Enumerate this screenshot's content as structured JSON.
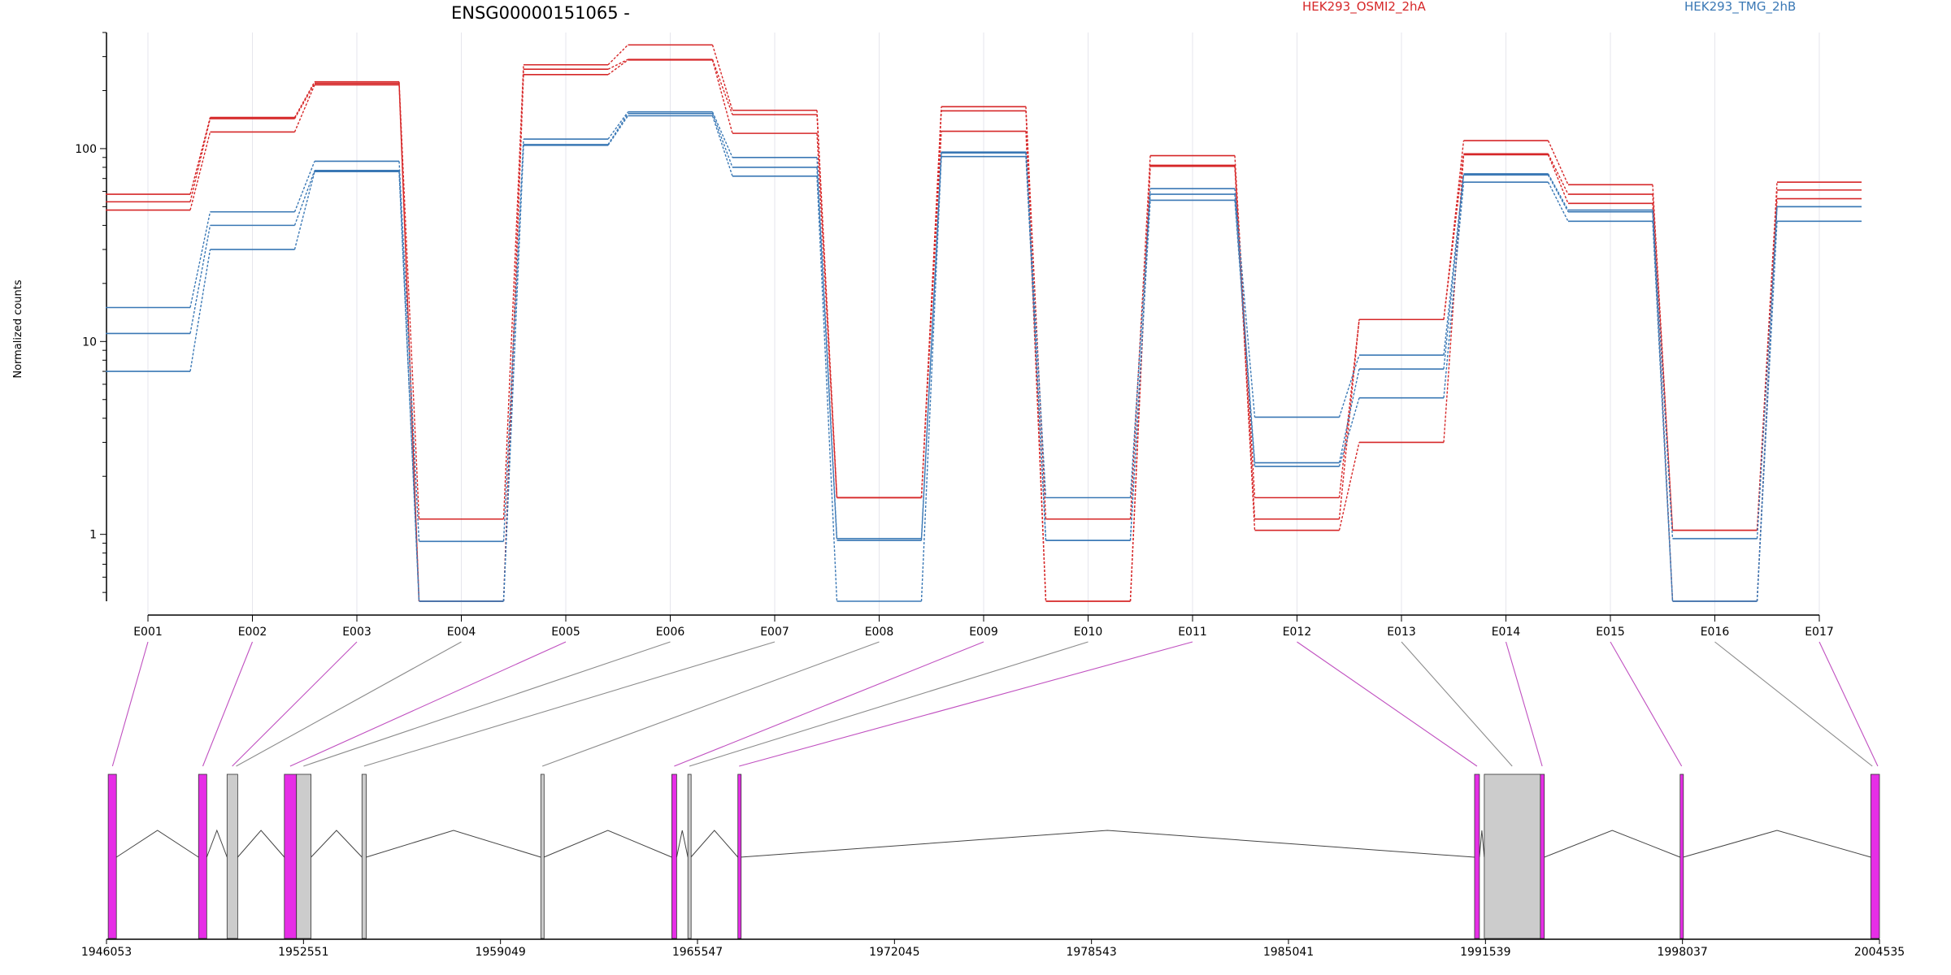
{
  "chart_data": {
    "type": "line",
    "title": "ENSG00000151065 -",
    "ylabel": "Normalized counts",
    "yscale": "log",
    "ylim": [
      0.45,
      400
    ],
    "yticks": [
      1,
      10,
      100
    ],
    "ytick_labels": [
      "1",
      "10",
      "100"
    ],
    "categories": [
      "E001",
      "E002",
      "E003",
      "E004",
      "E005",
      "E006",
      "E007",
      "E008",
      "E009",
      "E010",
      "E011",
      "E012",
      "E013",
      "E014",
      "E015",
      "E016",
      "E017"
    ],
    "legend": [
      {
        "name": "HEK293_OSMI2_2hA",
        "color": "#d62728"
      },
      {
        "name": "HEK293_TMG_2hB",
        "color": "#3a78b5"
      }
    ],
    "series": [
      {
        "name": "HEK293_OSMI2_2hA",
        "color": "#d62728",
        "values": [
          58,
          145,
          222,
          1.2,
          272,
          345,
          158,
          1.55,
          165,
          1.2,
          92,
          1.55,
          13,
          110,
          65,
          1.05,
          67
        ]
      },
      {
        "name": "HEK293_OSMI2_2hA",
        "color": "#d62728",
        "values": [
          53,
          143,
          218,
          0.45,
          258,
          290,
          150,
          1.55,
          157,
          0.45,
          82,
          1.2,
          13,
          94,
          58,
          1.05,
          61
        ]
      },
      {
        "name": "HEK293_OSMI2_2hA",
        "color": "#d62728",
        "values": [
          48,
          122,
          214,
          0.45,
          242,
          288,
          120,
          1.55,
          123,
          0.45,
          81,
          1.05,
          3,
          93,
          52,
          0.45,
          55
        ]
      },
      {
        "name": "HEK293_TMG_2hB",
        "color": "#3a78b5",
        "values": [
          15,
          47,
          86,
          0.92,
          112,
          155,
          90,
          0.95,
          96,
          1.55,
          62,
          4.05,
          8.5,
          74,
          48,
          0.95,
          50
        ]
      },
      {
        "name": "HEK293_TMG_2hB",
        "color": "#3a78b5",
        "values": [
          11,
          40,
          77,
          0.45,
          105,
          152,
          80,
          0.93,
          95,
          0.93,
          58,
          2.35,
          7.2,
          73,
          47,
          0.45,
          50
        ]
      },
      {
        "name": "HEK293_TMG_2hB",
        "color": "#3a78b5",
        "values": [
          7,
          30,
          76,
          0.45,
          104,
          148,
          72,
          0.45,
          91,
          0.93,
          54,
          2.25,
          5.1,
          67,
          42,
          0.45,
          42
        ]
      }
    ],
    "gene_model": {
      "coord_ticks": [
        "1946053",
        "1952551",
        "1959049",
        "1965547",
        "1972045",
        "1978543",
        "1985041",
        "1991539",
        "1998037",
        "2004535"
      ],
      "coord_range": [
        1946053,
        2004535
      ],
      "exons": [
        {
          "start": 1946110,
          "end": 1946380,
          "highlight": true,
          "label": "E001"
        },
        {
          "start": 1949090,
          "end": 1949360,
          "highlight": true,
          "label": "E002"
        },
        {
          "start": 1950030,
          "end": 1950380,
          "highlight": false,
          "label": "E003"
        },
        {
          "start": 1951920,
          "end": 1952320,
          "highlight": true,
          "label": "E004"
        },
        {
          "start": 1952320,
          "end": 1952800,
          "highlight": false,
          "label": "E005"
        },
        {
          "start": 1954480,
          "end": 1954620,
          "highlight": false,
          "label": "E006"
        },
        {
          "start": 1960380,
          "end": 1960480,
          "highlight": false,
          "label": "E007"
        },
        {
          "start": 1964700,
          "end": 1964860,
          "highlight": true,
          "label": "E008"
        },
        {
          "start": 1965230,
          "end": 1965330,
          "highlight": false,
          "label": "E009"
        },
        {
          "start": 1966880,
          "end": 1966960,
          "highlight": true,
          "label": "E010"
        },
        {
          "start": 1991180,
          "end": 1991340,
          "highlight": true,
          "label": "E011"
        },
        {
          "start": 1991500,
          "end": 1993350,
          "highlight": false,
          "label": "E012"
        },
        {
          "start": 1993350,
          "end": 1993480,
          "highlight": true,
          "label": "E013"
        },
        {
          "start": 1997960,
          "end": 1998060,
          "highlight": true,
          "label": "E014"
        },
        {
          "start": 2004250,
          "end": 2004535,
          "highlight": true,
          "label": "E015"
        }
      ],
      "connectors": [
        {
          "exon": "E001",
          "target": 1946250,
          "highlight": true
        },
        {
          "exon": "E002",
          "target": 1949230,
          "highlight": true
        },
        {
          "exon": "E003",
          "target": 1950200,
          "highlight": true
        },
        {
          "exon": "E004",
          "target": 1950330,
          "highlight": false
        },
        {
          "exon": "E005",
          "target": 1952110,
          "highlight": true
        },
        {
          "exon": "E006",
          "target": 1952550,
          "highlight": false
        },
        {
          "exon": "E007",
          "target": 1954550,
          "highlight": false
        },
        {
          "exon": "E008",
          "target": 1960430,
          "highlight": false
        },
        {
          "exon": "E009",
          "target": 1964780,
          "highlight": true
        },
        {
          "exon": "E010",
          "target": 1965280,
          "highlight": false
        },
        {
          "exon": "E011",
          "target": 1966920,
          "highlight": true
        },
        {
          "exon": "E012",
          "target": 1991260,
          "highlight": true
        },
        {
          "exon": "E013",
          "target": 1992420,
          "highlight": false
        },
        {
          "exon": "E014",
          "target": 1993410,
          "highlight": true
        },
        {
          "exon": "E015",
          "target": 1998010,
          "highlight": true
        },
        {
          "exon": "E016",
          "target": 2004300,
          "highlight": false
        },
        {
          "exon": "E017",
          "target": 2004480,
          "highlight": true
        }
      ],
      "colors": {
        "highlight_exon": "#e62ee6",
        "exon": "#cccccc",
        "highlight_connector": "#c050c0",
        "connector": "#8c8c8c",
        "intron": "#444444"
      }
    }
  }
}
